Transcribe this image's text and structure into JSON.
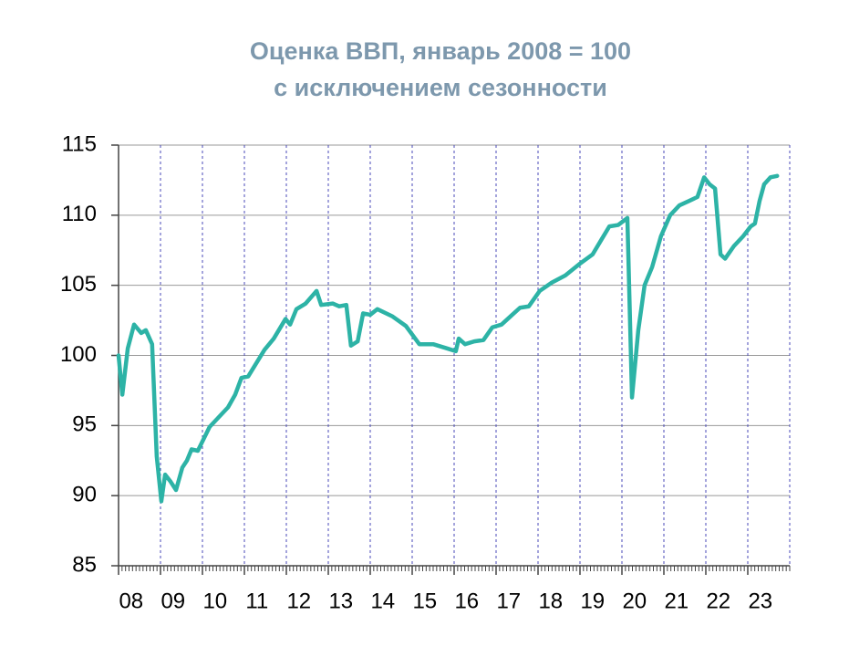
{
  "chart_data": {
    "type": "line",
    "title": "Оценка ВВП, январь 2008 = 100",
    "subtitle": "с исключением сезонности",
    "x": [
      2008.0,
      2008.09,
      2008.22,
      2008.37,
      2008.54,
      2008.65,
      2008.8,
      2008.91,
      2009.02,
      2009.11,
      2009.24,
      2009.37,
      2009.52,
      2009.63,
      2009.74,
      2009.89,
      2010.17,
      2010.39,
      2010.61,
      2010.78,
      2010.93,
      2011.09,
      2011.48,
      2011.7,
      2011.98,
      2012.09,
      2012.24,
      2012.46,
      2012.72,
      2012.83,
      2013.11,
      2013.26,
      2013.43,
      2013.54,
      2013.7,
      2013.83,
      2014.0,
      2014.17,
      2014.52,
      2014.85,
      2015.17,
      2015.5,
      2015.83,
      2016.04,
      2016.11,
      2016.26,
      2016.48,
      2016.7,
      2016.91,
      2017.13,
      2017.35,
      2017.57,
      2017.78,
      2018.04,
      2018.33,
      2018.65,
      2018.98,
      2019.3,
      2019.52,
      2019.7,
      2019.91,
      2020.13,
      2020.24,
      2020.39,
      2020.54,
      2020.72,
      2020.93,
      2021.15,
      2021.37,
      2021.59,
      2021.8,
      2021.96,
      2022.09,
      2022.22,
      2022.35,
      2022.46,
      2022.67,
      2022.89,
      2023.07,
      2023.17,
      2023.28,
      2023.39,
      2023.54,
      2023.7
    ],
    "series": [
      {
        "color": "#2db3a6",
        "values": [
          100.0,
          97.2,
          100.5,
          102.2,
          101.6,
          101.8,
          100.8,
          92.8,
          89.6,
          91.5,
          91.0,
          90.4,
          92.0,
          92.5,
          93.3,
          93.2,
          94.9,
          95.6,
          96.3,
          97.2,
          98.4,
          98.5,
          100.4,
          101.2,
          102.6,
          102.2,
          103.3,
          103.7,
          104.6,
          103.6,
          103.7,
          103.5,
          103.6,
          100.7,
          101.0,
          103.0,
          102.9,
          103.3,
          102.8,
          102.1,
          100.8,
          100.8,
          100.5,
          100.3,
          101.2,
          100.8,
          101.0,
          101.1,
          102.0,
          102.2,
          102.8,
          103.4,
          103.5,
          104.6,
          105.2,
          105.7,
          106.5,
          107.2,
          108.3,
          109.2,
          109.3,
          109.8,
          97.0,
          101.8,
          105.0,
          106.3,
          108.5,
          110.0,
          110.7,
          111.0,
          111.3,
          112.7,
          112.2,
          111.9,
          107.2,
          106.9,
          107.8,
          108.5,
          109.2,
          109.4,
          111.0,
          112.2,
          112.7,
          112.8
        ]
      }
    ],
    "xlim": [
      2008,
      2024
    ],
    "xticks": [
      {
        "value": 2008,
        "label": "08"
      },
      {
        "value": 2009,
        "label": "09"
      },
      {
        "value": 2010,
        "label": "10"
      },
      {
        "value": 2011,
        "label": "11"
      },
      {
        "value": 2012,
        "label": "12"
      },
      {
        "value": 2013,
        "label": "13"
      },
      {
        "value": 2014,
        "label": "14"
      },
      {
        "value": 2015,
        "label": "15"
      },
      {
        "value": 2016,
        "label": "16"
      },
      {
        "value": 2017,
        "label": "17"
      },
      {
        "value": 2018,
        "label": "18"
      },
      {
        "value": 2019,
        "label": "19"
      },
      {
        "value": 2020,
        "label": "20"
      },
      {
        "value": 2021,
        "label": "21"
      },
      {
        "value": 2022,
        "label": "22"
      },
      {
        "value": 2023,
        "label": "23"
      }
    ],
    "ylim": [
      85,
      115
    ],
    "yticks": [
      85,
      90,
      95,
      100,
      105,
      110,
      115
    ],
    "grid": true
  }
}
